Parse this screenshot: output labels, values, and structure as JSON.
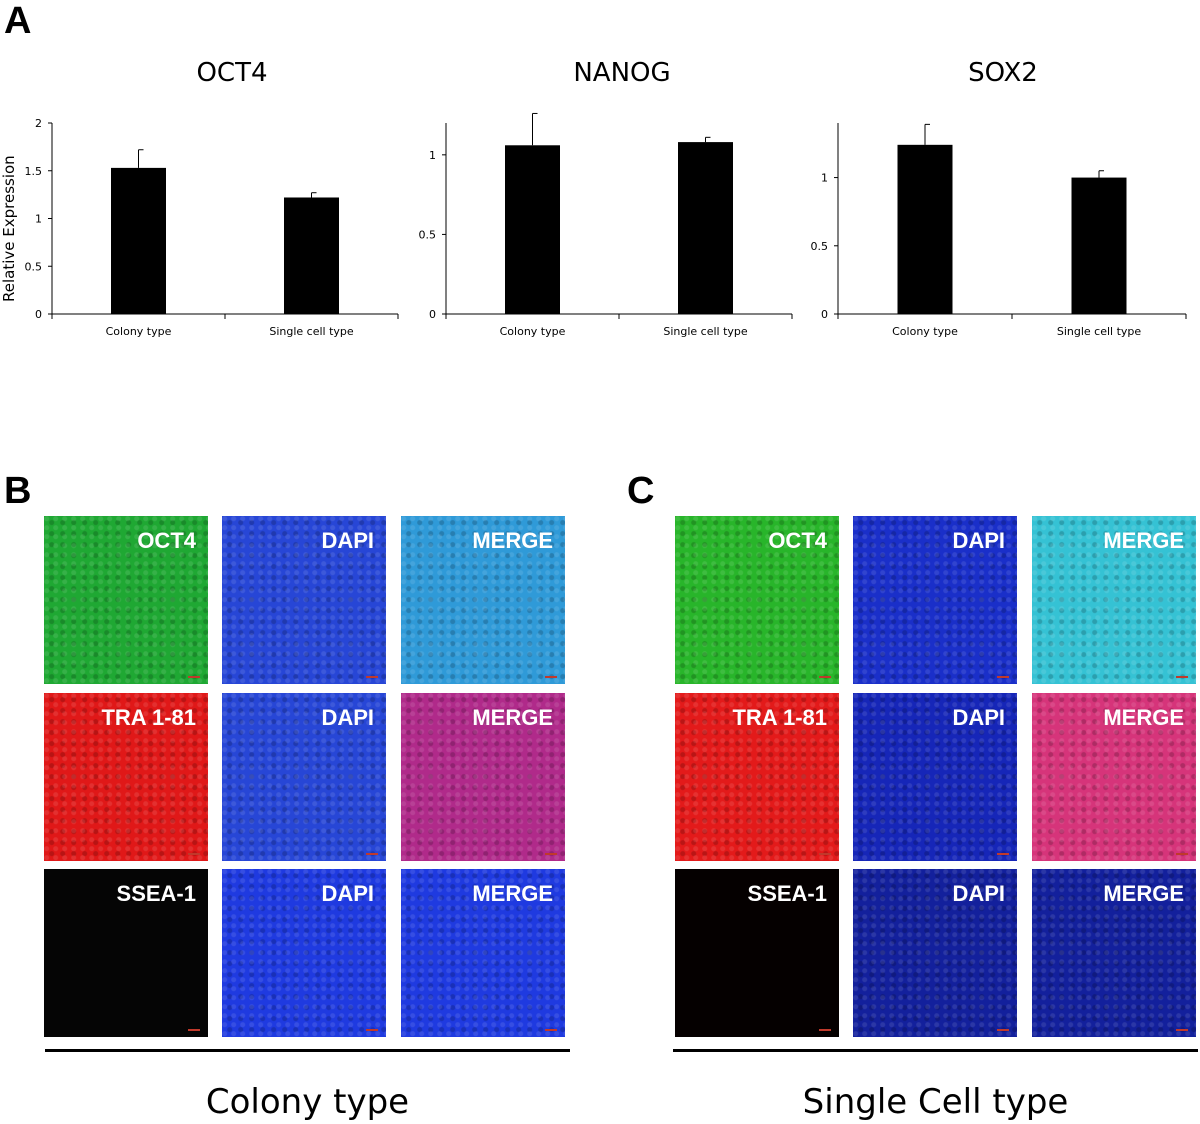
{
  "panels": {
    "a": "A",
    "b": "B",
    "c": "C"
  },
  "chart_data": [
    {
      "type": "bar",
      "title": "OCT4",
      "ylabel": "Relative Expression",
      "categories": [
        "Colony type",
        "Single cell type"
      ],
      "values": [
        1.53,
        1.22
      ],
      "errors": [
        0.19,
        0.05
      ],
      "ylim": [
        0,
        2
      ],
      "yticks": [
        0,
        0.5,
        1,
        1.5,
        2
      ],
      "ytick_labels": [
        "0",
        "0.5",
        "1",
        "1.5",
        "2"
      ],
      "bar_color": "#000000"
    },
    {
      "type": "bar",
      "title": "NANOG",
      "ylabel": "",
      "categories": [
        "Colony type",
        "Single cell type"
      ],
      "values": [
        1.06,
        1.08
      ],
      "errors": [
        0.2,
        0.03
      ],
      "ylim": [
        0,
        1.2
      ],
      "yticks": [
        0,
        0.5,
        1
      ],
      "ytick_labels": [
        "0",
        "0.5",
        "1"
      ],
      "bar_color": "#000000"
    },
    {
      "type": "bar",
      "title": "SOX2",
      "ylabel": "",
      "categories": [
        "Colony type",
        "Single cell type"
      ],
      "values": [
        1.24,
        1.0
      ],
      "errors": [
        0.15,
        0.05
      ],
      "ylim": [
        0,
        1.4
      ],
      "yticks": [
        0,
        0.5,
        1
      ],
      "ytick_labels": [
        "0",
        "0.5",
        "1"
      ],
      "bar_color": "#000000"
    }
  ],
  "images": {
    "colony": {
      "caption": "Colony type",
      "rows": [
        {
          "labels": [
            "OCT4",
            "DAPI",
            "MERGE"
          ],
          "colors": [
            "#1fa833",
            "#2746d6",
            "#2f9ad8"
          ]
        },
        {
          "labels": [
            "TRA 1-81",
            "DAPI",
            "MERGE"
          ],
          "colors": [
            "#e01818",
            "#2746d6",
            "#b02a8a"
          ]
        },
        {
          "labels": [
            "SSEA-1",
            "DAPI",
            "MERGE"
          ],
          "colors": [
            "#050505",
            "#1f3ae0",
            "#1f3ae0"
          ]
        }
      ]
    },
    "single": {
      "caption": "Single Cell type",
      "rows": [
        {
          "labels": [
            "OCT4",
            "DAPI",
            "MERGE"
          ],
          "colors": [
            "#28b52a",
            "#1a2fc9",
            "#35c2d4"
          ]
        },
        {
          "labels": [
            "TRA 1-81",
            "DAPI",
            "MERGE"
          ],
          "colors": [
            "#e31a1a",
            "#1626b8",
            "#d6347a"
          ]
        },
        {
          "labels": [
            "SSEA-1",
            "DAPI",
            "MERGE"
          ],
          "colors": [
            "#050000",
            "#13209c",
            "#13209c"
          ]
        }
      ]
    }
  }
}
